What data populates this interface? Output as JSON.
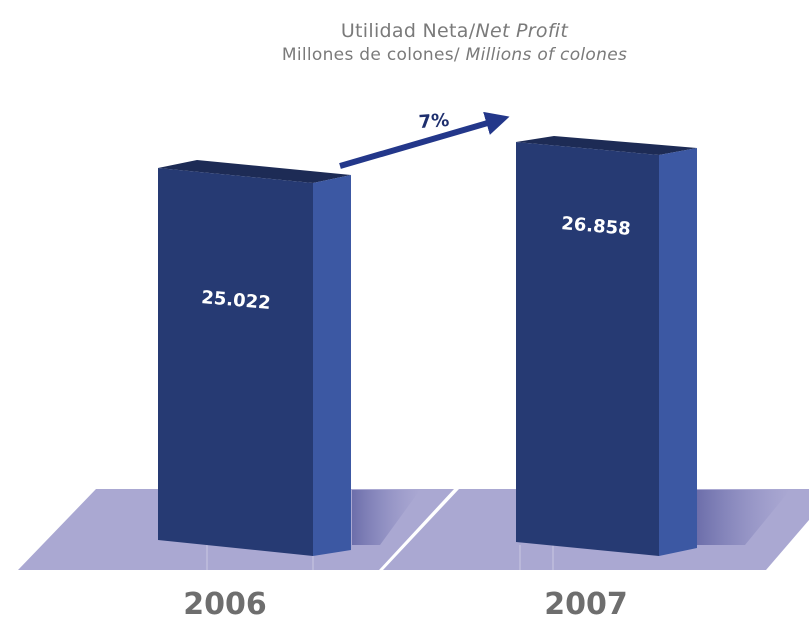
{
  "chart_data": {
    "type": "bar",
    "title": "Utilidad Neta/",
    "title_en": "Net Profit",
    "subtitle": "Millones de colones/ ",
    "subtitle_en": "Millions of colones",
    "categories": [
      "2006",
      "2007"
    ],
    "values": [
      25022,
      26858
    ],
    "value_labels": [
      "25.022",
      "26.858"
    ],
    "growth_label": "7%",
    "colors": {
      "bar_front": "#263a73",
      "bar_side": "#3c58a3",
      "bar_top": "#1d2b55",
      "floor": "#aaa8d2",
      "arrow": "#23378a",
      "year_text": "#6e6e6e"
    }
  }
}
